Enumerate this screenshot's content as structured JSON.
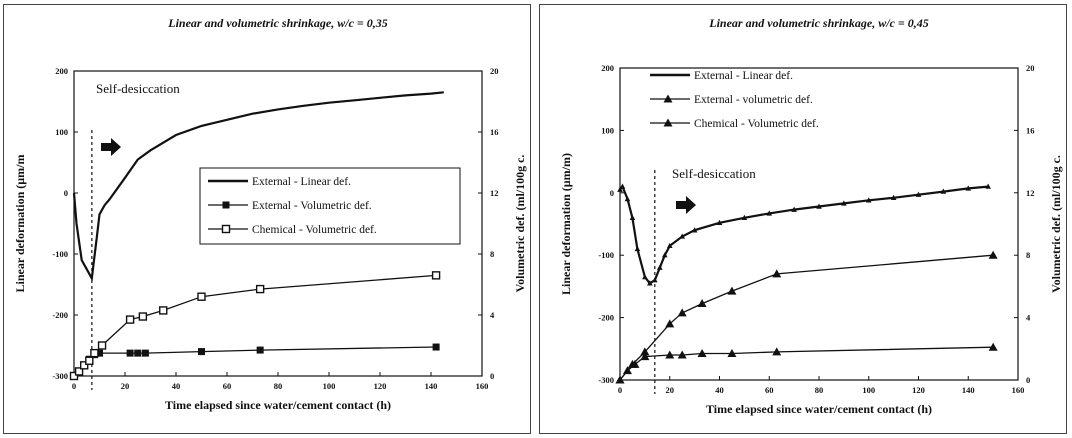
{
  "colors": {
    "line": "#111111",
    "background": "#ffffff",
    "frame": "#444444"
  },
  "chart_data": [
    {
      "type": "line",
      "title": "Linear and volumetric shrinkage, w/c = 0,35",
      "xlabel": "Time elapsed since water/cement contact (h)",
      "ylabel": "Linear deformation (µm/m",
      "y2label": "Volumetric def. (ml/100g c.",
      "xlim": [
        0,
        160
      ],
      "ylim": [
        -300,
        200
      ],
      "y2lim": [
        0,
        20
      ],
      "xticks": [
        "0",
        "20",
        "40",
        "60",
        "80",
        "100",
        "120",
        "140",
        "160"
      ],
      "yticks": [
        "-300",
        "-200",
        "-100",
        "0",
        "100",
        "200"
      ],
      "y2ticks": [
        "0",
        "4",
        "8",
        "12",
        "16",
        "20"
      ],
      "annotation": "Self-desiccation",
      "dashed_x": 7,
      "arrow_icon": "right-arrow-icon",
      "legend_position": "center-right",
      "legend": [
        "External - Linear def.",
        "External - Volumetric def.",
        "Chemical - Volumetric def."
      ],
      "series": [
        {
          "name": "External - Linear def.",
          "axis": "left",
          "marker": "none",
          "x": [
            0,
            1,
            3,
            5,
            7,
            9,
            10,
            12,
            14,
            20,
            25,
            30,
            40,
            50,
            60,
            70,
            80,
            90,
            100,
            110,
            120,
            130,
            140,
            145
          ],
          "y": [
            0,
            -50,
            -110,
            -125,
            -140,
            -70,
            -35,
            -20,
            -10,
            25,
            55,
            70,
            95,
            110,
            120,
            130,
            137,
            143,
            148,
            152,
            156,
            160,
            163,
            165
          ]
        },
        {
          "name": "External - Volumetric def.",
          "axis": "right",
          "marker": "square-filled",
          "x": [
            0,
            2,
            4,
            6,
            8,
            10,
            22,
            25,
            28,
            50,
            73,
            142
          ],
          "y": [
            0,
            0.3,
            0.7,
            1.1,
            1.4,
            1.5,
            1.5,
            1.5,
            1.5,
            1.6,
            1.7,
            1.9
          ]
        },
        {
          "name": "Chemical - Volumetric def.",
          "axis": "right",
          "marker": "square-open",
          "x": [
            0,
            2,
            4,
            6,
            8,
            11,
            22,
            27,
            35,
            50,
            73,
            142
          ],
          "y": [
            0,
            0.3,
            0.7,
            1.0,
            1.5,
            2.0,
            3.7,
            3.9,
            4.3,
            5.2,
            5.7,
            6.6
          ]
        }
      ]
    },
    {
      "type": "line",
      "title": "Linear and volumetric shrinkage, w/c = 0,45",
      "xlabel": "Time elapsed since water/cement contact (h)",
      "ylabel": "Linear deformation (µm/m)",
      "y2label": "Volumetric def. (ml/100g c.",
      "xlim": [
        0,
        160
      ],
      "ylim": [
        -300,
        200
      ],
      "y2lim": [
        0,
        20
      ],
      "xticks": [
        "0",
        "20",
        "40",
        "60",
        "80",
        "100",
        "120",
        "140",
        "160"
      ],
      "yticks": [
        "-300",
        "-200",
        "-100",
        "0",
        "100",
        "200"
      ],
      "y2ticks": [
        "0",
        "4",
        "8",
        "12",
        "16",
        "20"
      ],
      "annotation": "Self-desiccation",
      "dashed_x": 14,
      "arrow_icon": "right-arrow-icon",
      "legend_position": "top-left",
      "legend": [
        "External - Linear def.",
        "External - volumetric def.",
        "Chemical - Volumetric def."
      ],
      "series": [
        {
          "name": "External - Linear def.",
          "axis": "left",
          "marker": "tri-small",
          "x": [
            0,
            1,
            3,
            5,
            7,
            10,
            12,
            14,
            16,
            18,
            20,
            25,
            30,
            40,
            50,
            60,
            70,
            80,
            90,
            100,
            110,
            120,
            130,
            140,
            148
          ],
          "y": [
            5,
            10,
            -10,
            -40,
            -90,
            -135,
            -145,
            -140,
            -120,
            -100,
            -85,
            -70,
            -60,
            -48,
            -40,
            -33,
            -27,
            -22,
            -17,
            -12,
            -8,
            -3,
            2,
            7,
            10
          ]
        },
        {
          "name": "External - volumetric def.",
          "axis": "right",
          "marker": "triangle",
          "x": [
            0,
            3,
            6,
            10,
            20,
            25,
            33,
            45,
            63,
            150
          ],
          "y": [
            0,
            0.6,
            1.0,
            1.5,
            1.6,
            1.6,
            1.7,
            1.7,
            1.8,
            2.1
          ]
        },
        {
          "name": "Chemical - Volumetric def.",
          "axis": "right",
          "marker": "triangle",
          "x": [
            0,
            5,
            10,
            20,
            25,
            33,
            45,
            63,
            150
          ],
          "y": [
            0,
            1.0,
            1.8,
            3.6,
            4.3,
            4.9,
            5.7,
            6.8,
            8.0
          ]
        }
      ]
    }
  ]
}
